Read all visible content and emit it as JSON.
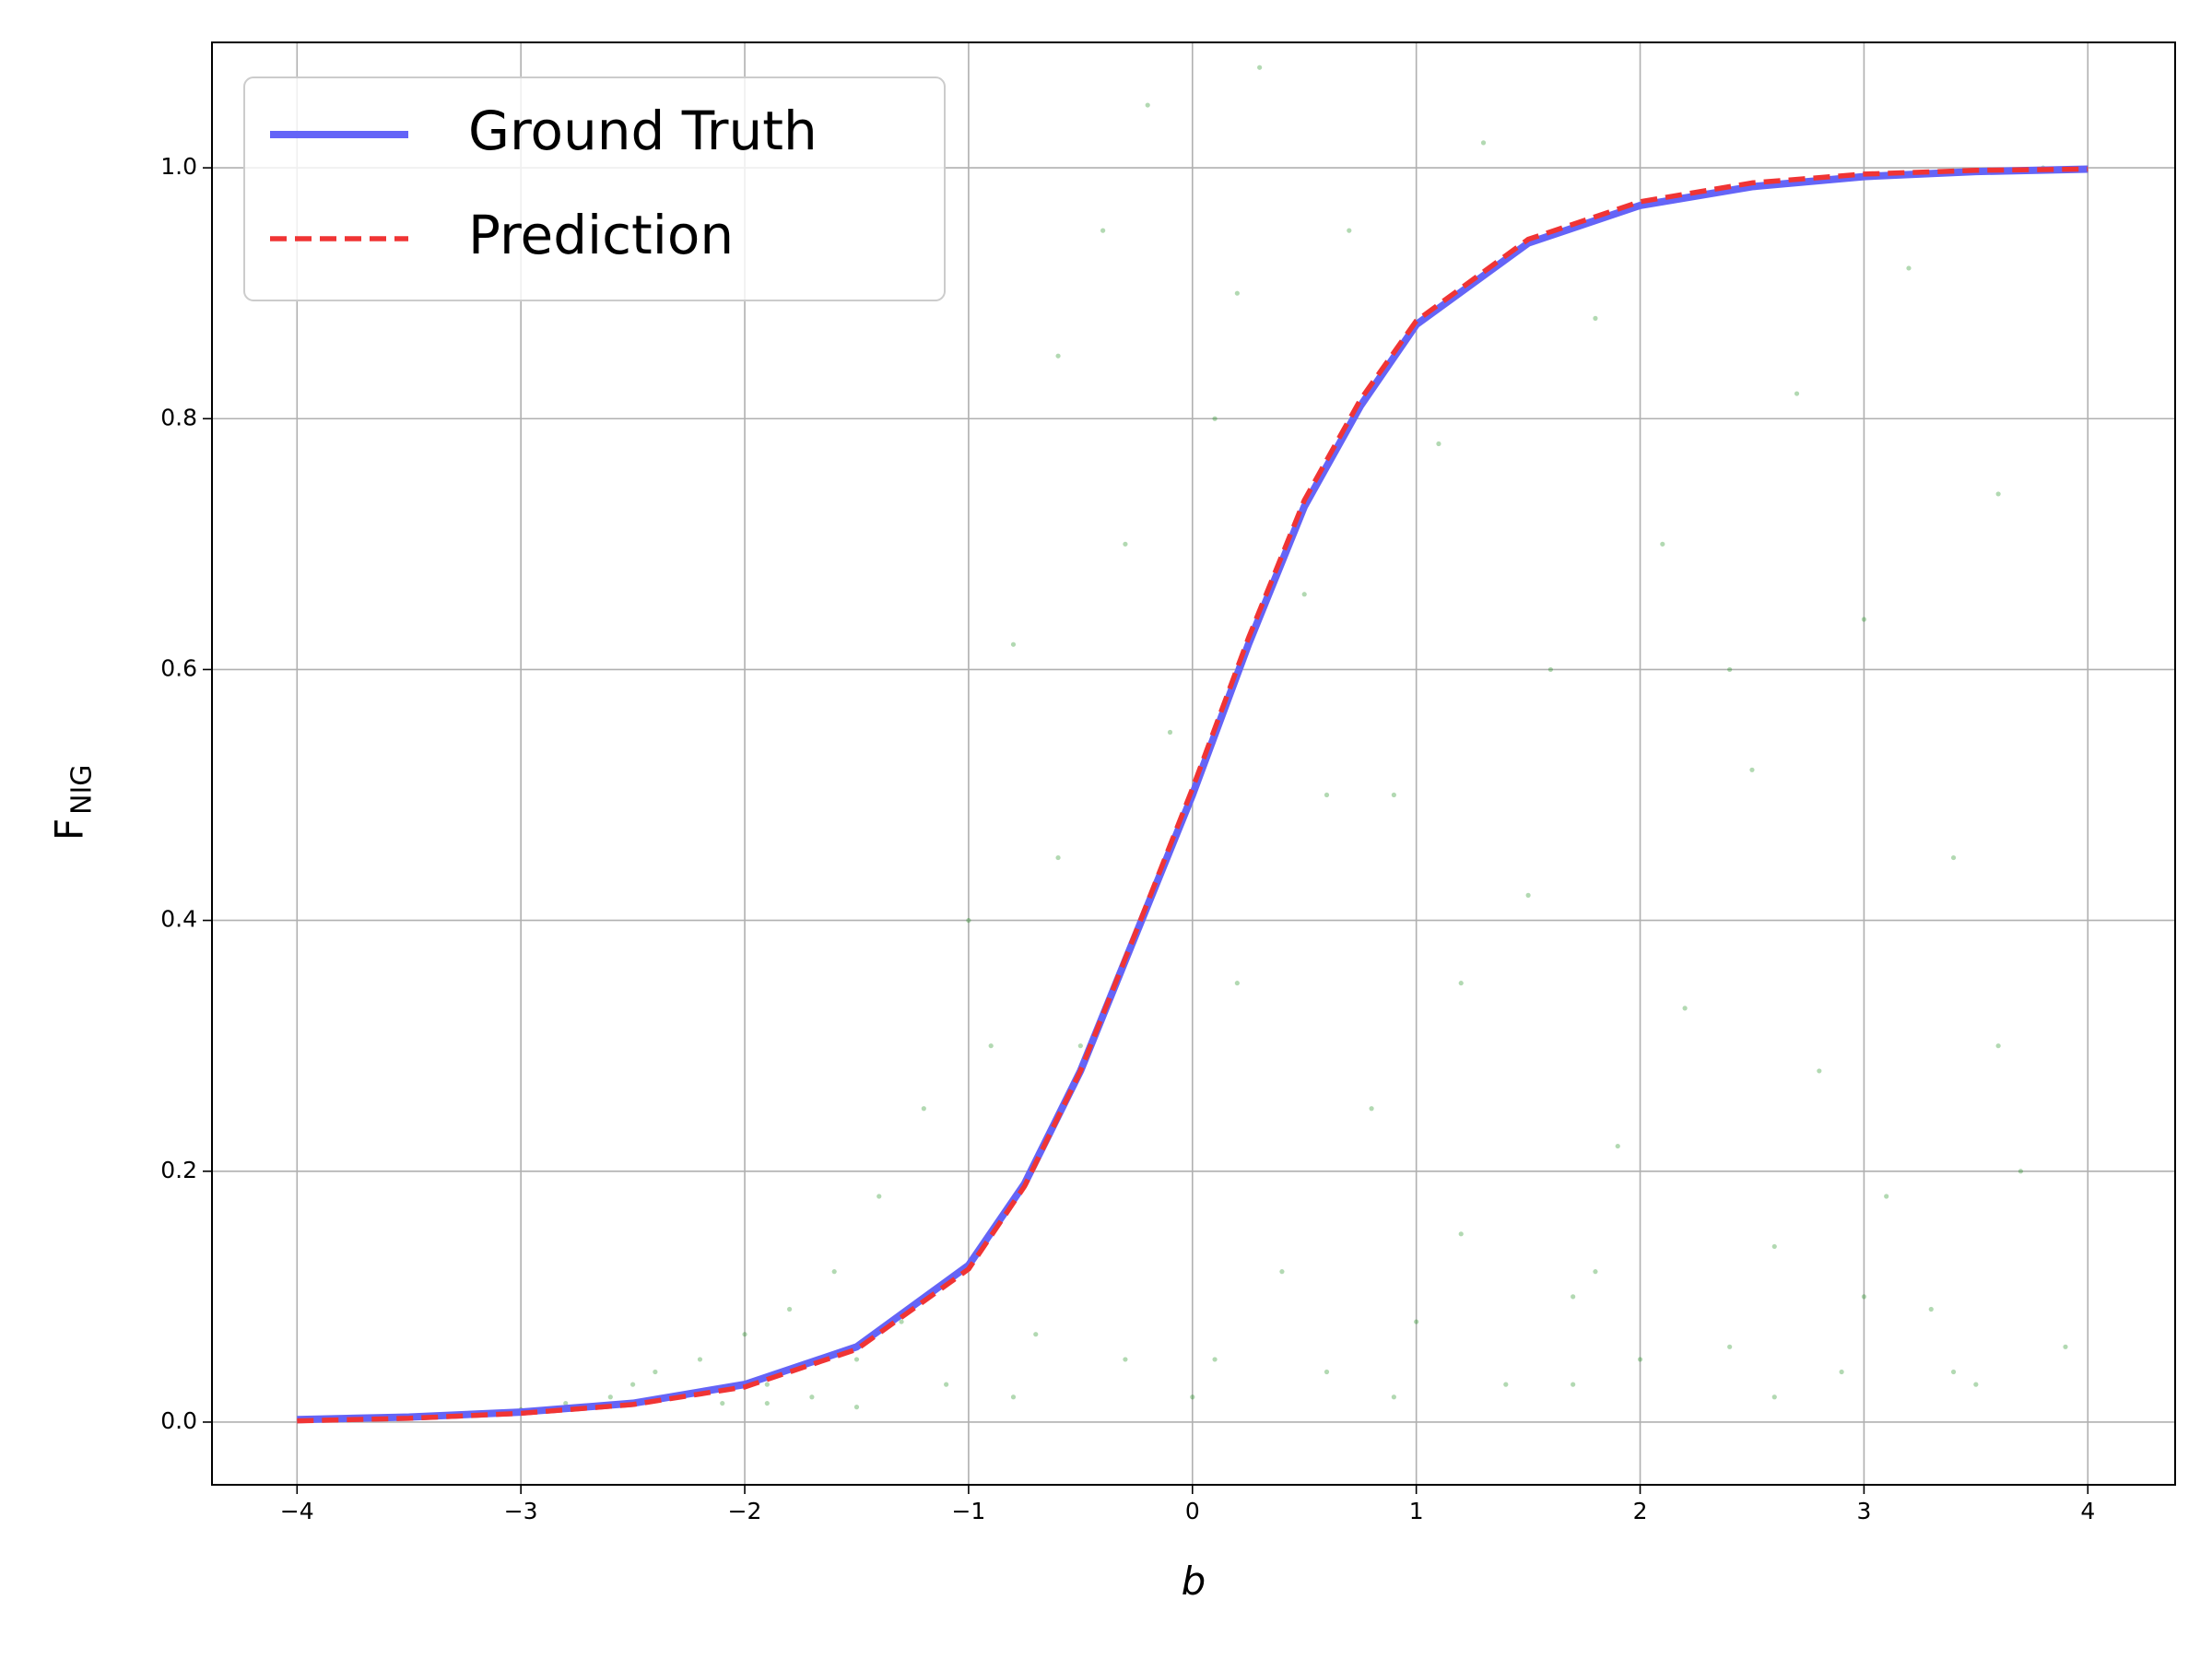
{
  "chart_data": {
    "type": "line",
    "xlabel": "b",
    "ylabel": "F",
    "ylabel_sub": "NIG",
    "x": [
      -4,
      -3.5,
      -3,
      -2.5,
      -2,
      -1.5,
      -1,
      -0.75,
      -0.5,
      -0.25,
      0,
      0.25,
      0.5,
      0.75,
      1,
      1.5,
      2,
      2.5,
      3,
      3.5,
      4
    ],
    "series": [
      {
        "name": "Ground Truth",
        "color": "#6464f7",
        "dashed": false,
        "values": [
          0.002,
          0.004,
          0.008,
          0.015,
          0.03,
          0.06,
          0.125,
          0.19,
          0.28,
          0.39,
          0.5,
          0.62,
          0.73,
          0.81,
          0.875,
          0.94,
          0.97,
          0.985,
          0.993,
          0.997,
          0.999
        ]
      },
      {
        "name": "Prediction",
        "color": "#f03434",
        "dashed": true,
        "values": [
          0.001,
          0.003,
          0.007,
          0.014,
          0.028,
          0.058,
          0.122,
          0.188,
          0.28,
          0.392,
          0.505,
          0.625,
          0.735,
          0.815,
          0.878,
          0.943,
          0.973,
          0.988,
          0.995,
          0.998,
          0.999
        ]
      }
    ],
    "scatter": {
      "color": "green",
      "x": [
        -3.8,
        -3.5,
        -3.2,
        -3.0,
        -2.8,
        -2.6,
        -2.5,
        -2.4,
        -2.3,
        -2.2,
        -2.1,
        -2.0,
        -1.9,
        -1.8,
        -1.7,
        -1.6,
        -1.5,
        -1.4,
        -1.3,
        -1.2,
        -1.1,
        -1.0,
        -0.9,
        -0.8,
        -0.7,
        -0.6,
        -0.5,
        -0.4,
        -0.3,
        -0.2,
        -0.1,
        0.0,
        0.1,
        0.2,
        0.3,
        0.4,
        0.5,
        0.6,
        0.7,
        0.8,
        0.9,
        1.0,
        1.1,
        1.2,
        1.3,
        1.4,
        1.5,
        1.6,
        1.7,
        1.8,
        1.9,
        2.0,
        2.1,
        2.2,
        2.3,
        2.4,
        2.5,
        2.6,
        2.7,
        2.8,
        2.9,
        3.0,
        3.1,
        3.2,
        3.3,
        3.4,
        3.5,
        3.6,
        3.7,
        3.8,
        3.9,
        -1.9,
        -1.5,
        -1.2,
        -0.9,
        -0.6,
        -0.3,
        0.2,
        0.6,
        1.2,
        1.8,
        2.4,
        3.0,
        3.6,
        -0.8,
        0.1,
        0.9,
        1.7,
        2.6,
        3.4
      ],
      "y": [
        0.002,
        0.004,
        0.006,
        0.01,
        0.015,
        0.02,
        0.03,
        0.04,
        0.02,
        0.05,
        0.015,
        0.07,
        0.03,
        0.09,
        0.02,
        0.12,
        0.05,
        0.18,
        0.08,
        0.25,
        0.03,
        0.4,
        0.15,
        0.62,
        0.07,
        0.85,
        0.3,
        0.95,
        0.05,
        1.05,
        0.55,
        0.02,
        0.8,
        0.35,
        1.08,
        0.12,
        0.66,
        0.04,
        0.95,
        0.25,
        0.5,
        0.08,
        0.78,
        0.15,
        1.02,
        0.03,
        0.42,
        0.6,
        0.1,
        0.88,
        0.22,
        0.05,
        0.7,
        0.33,
        0.98,
        0.06,
        0.52,
        0.14,
        0.82,
        0.28,
        0.04,
        0.64,
        0.18,
        0.92,
        0.09,
        0.45,
        0.03,
        0.74,
        0.2,
        1.0,
        0.06,
        0.015,
        0.012,
        0.1,
        0.3,
        0.45,
        0.7,
        0.9,
        0.5,
        0.35,
        0.12,
        0.6,
        0.1,
        0.3,
        0.02,
        0.05,
        0.02,
        0.03,
        0.02,
        0.04
      ]
    },
    "xlim": [
      -4.38,
      4.39
    ],
    "ylim": [
      -0.05,
      1.1
    ],
    "xticks": [
      {
        "value": -4,
        "label": "−4"
      },
      {
        "value": -3,
        "label": "−3"
      },
      {
        "value": -2,
        "label": "−2"
      },
      {
        "value": -1,
        "label": "−1"
      },
      0,
      1,
      2,
      3,
      4
    ],
    "yticks": [
      {
        "value": 0,
        "label": "0.0"
      },
      0.2,
      0.4,
      0.6,
      0.8,
      {
        "value": 1,
        "label": "1.0"
      }
    ],
    "grid": true,
    "legend": "upper left"
  }
}
